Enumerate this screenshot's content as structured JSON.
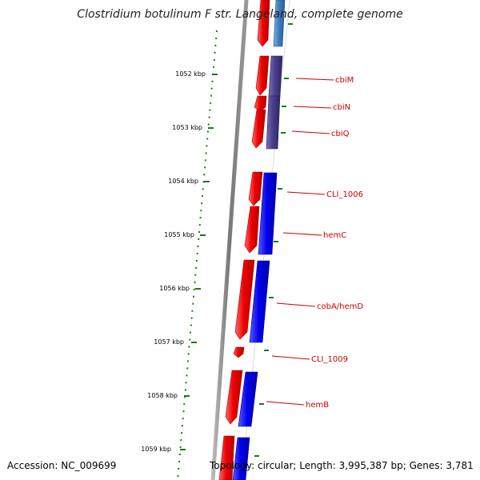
{
  "title": "Clostridium botulinum F str. Langeland, complete genome",
  "footer": {
    "accession_label": "Accession:",
    "accession": "NC_009699",
    "topology_label": "Topology:",
    "topology": "circular",
    "length_label": "Length:",
    "length": "3,995,387 bp",
    "genes_label": "Genes:",
    "genes": "3,781"
  },
  "colors": {
    "forward_gene": "#ee0000",
    "reverse_gene_dark": "#4a3f8a",
    "reverse_gene_blue": "#0000ee",
    "reverse_gene_light": "#3f7fbf",
    "ticks": "#1a7a1a",
    "gene_label": "#cc0000",
    "backbone": "#888888"
  },
  "chart_data": {
    "type": "linear-genome-map",
    "coordinate_unit": "kbp",
    "scale_labels": [
      "1052 kbp",
      "1053 kbp",
      "1054 kbp",
      "1055 kbp",
      "1056 kbp",
      "1057 kbp",
      "1058 kbp",
      "1059 kbp"
    ],
    "genes": [
      {
        "label": "cbiM"
      },
      {
        "label": "cbiN"
      },
      {
        "label": "cbiQ"
      },
      {
        "label": "CLI_1006"
      },
      {
        "label": "hemC"
      },
      {
        "label": "cobA/hemD"
      },
      {
        "label": "CLI_1009"
      },
      {
        "label": "hemB"
      }
    ]
  }
}
